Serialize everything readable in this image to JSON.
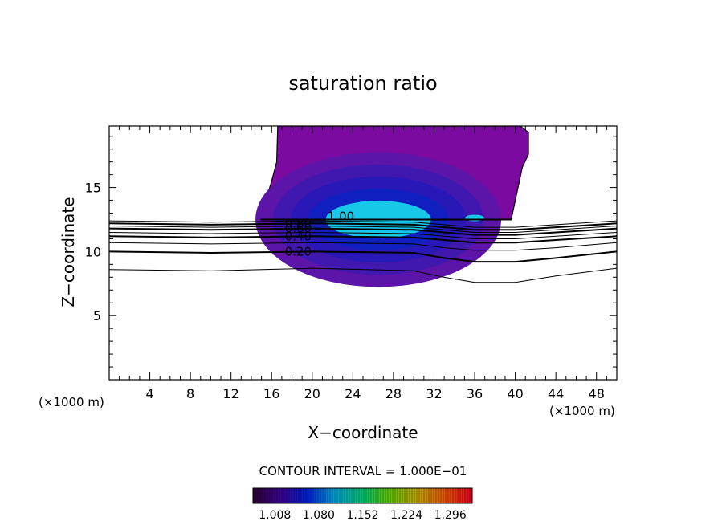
{
  "chart_data": {
    "type": "contour",
    "title": "saturation ratio",
    "xlabel": "X−coordinate",
    "ylabel": "Z−coordinate",
    "x_unit_left": "(×1000 m)",
    "x_unit_right": "(×1000 m)",
    "xlim": [
      0,
      50
    ],
    "ylim": [
      0,
      19.8
    ],
    "x_ticks": [
      4,
      8,
      12,
      16,
      20,
      24,
      28,
      32,
      36,
      40,
      44,
      48
    ],
    "y_ticks": [
      5,
      10,
      15
    ],
    "contour_interval_label": "CONTOUR INTERVAL = 1.000E−01",
    "contour_lines": [
      {
        "level": 0.1,
        "label": "",
        "points": [
          [
            0,
            8.6
          ],
          [
            10,
            8.5
          ],
          [
            20,
            8.7
          ],
          [
            30,
            8.5
          ],
          [
            33,
            8.0
          ],
          [
            36,
            7.6
          ],
          [
            40,
            7.6
          ],
          [
            44,
            8.1
          ],
          [
            50,
            8.7
          ]
        ]
      },
      {
        "level": 0.2,
        "label": "0.20",
        "points": [
          [
            0,
            10.0
          ],
          [
            10,
            9.9
          ],
          [
            20,
            10.0
          ],
          [
            30,
            9.9
          ],
          [
            33,
            9.5
          ],
          [
            36,
            9.2
          ],
          [
            40,
            9.2
          ],
          [
            44,
            9.5
          ],
          [
            50,
            10.0
          ]
        ]
      },
      {
        "level": 0.3,
        "label": "",
        "points": [
          [
            0,
            10.7
          ],
          [
            10,
            10.6
          ],
          [
            20,
            10.7
          ],
          [
            30,
            10.6
          ],
          [
            33,
            10.3
          ],
          [
            36,
            10.1
          ],
          [
            40,
            10.1
          ],
          [
            44,
            10.3
          ],
          [
            50,
            10.7
          ]
        ]
      },
      {
        "level": 0.4,
        "label": "0.40",
        "points": [
          [
            0,
            11.2
          ],
          [
            10,
            11.1
          ],
          [
            20,
            11.2
          ],
          [
            30,
            11.1
          ],
          [
            33,
            10.9
          ],
          [
            36,
            10.7
          ],
          [
            40,
            10.7
          ],
          [
            44,
            10.9
          ],
          [
            50,
            11.2
          ]
        ]
      },
      {
        "level": 0.5,
        "label": "",
        "points": [
          [
            0,
            11.5
          ],
          [
            10,
            11.4
          ],
          [
            20,
            11.5
          ],
          [
            30,
            11.4
          ],
          [
            33,
            11.2
          ],
          [
            36,
            11.0
          ],
          [
            40,
            11.0
          ],
          [
            44,
            11.2
          ],
          [
            50,
            11.5
          ]
        ]
      },
      {
        "level": 0.6,
        "label": "0.60",
        "points": [
          [
            0,
            11.8
          ],
          [
            10,
            11.7
          ],
          [
            20,
            11.8
          ],
          [
            30,
            11.7
          ],
          [
            33,
            11.5
          ],
          [
            36,
            11.3
          ],
          [
            40,
            11.3
          ],
          [
            44,
            11.5
          ],
          [
            50,
            11.8
          ]
        ]
      },
      {
        "level": 0.7,
        "label": "",
        "points": [
          [
            0,
            12.0
          ],
          [
            10,
            11.9
          ],
          [
            20,
            12.0
          ],
          [
            30,
            11.9
          ],
          [
            33,
            11.7
          ],
          [
            36,
            11.5
          ],
          [
            40,
            11.5
          ],
          [
            44,
            11.7
          ],
          [
            50,
            12.0
          ]
        ]
      },
      {
        "level": 0.8,
        "label": "0.80",
        "points": [
          [
            0,
            12.2
          ],
          [
            10,
            12.1
          ],
          [
            20,
            12.2
          ],
          [
            30,
            12.1
          ],
          [
            33,
            11.9
          ],
          [
            36,
            11.7
          ],
          [
            40,
            11.7
          ],
          [
            44,
            11.9
          ],
          [
            50,
            12.2
          ]
        ]
      },
      {
        "level": 0.9,
        "label": "",
        "points": [
          [
            0,
            12.4
          ],
          [
            10,
            12.3
          ],
          [
            20,
            12.4
          ],
          [
            30,
            12.3
          ],
          [
            33,
            12.1
          ],
          [
            36,
            11.9
          ],
          [
            40,
            11.9
          ],
          [
            44,
            12.1
          ],
          [
            50,
            12.4
          ]
        ]
      },
      {
        "level": 1.0,
        "label": "1.00",
        "points": [
          [
            14.9,
            12.5
          ],
          [
            39.6,
            12.5
          ]
        ]
      }
    ],
    "cloud_region": {
      "outline": [
        [
          14.9,
          12.5
        ],
        [
          15.5,
          14.2
        ],
        [
          16.0,
          15.5
        ],
        [
          16.5,
          17.0
        ],
        [
          16.6,
          19.8
        ],
        [
          40.5,
          19.8
        ],
        [
          41.3,
          19.3
        ],
        [
          41.3,
          17.6
        ],
        [
          40.7,
          16.6
        ],
        [
          39.6,
          12.5
        ]
      ],
      "fill_levels": [
        {
          "value": 1.008,
          "color": "#7a0aa0"
        },
        {
          "value": 1.02,
          "color": "#5d14a8"
        },
        {
          "value": 1.04,
          "color": "#4018b0"
        },
        {
          "value": 1.06,
          "color": "#2818b8"
        },
        {
          "value": 1.08,
          "color": "#1020c0"
        },
        {
          "value": 1.15,
          "color": "#18c8e8"
        }
      ]
    },
    "colorbar": {
      "ticks": [
        "1.008",
        "1.080",
        "1.152",
        "1.224",
        "1.296"
      ],
      "range": [
        0.972,
        1.332
      ],
      "colors": [
        "#2a0030",
        "#3a0090",
        "#0020d0",
        "#00a0d0",
        "#00c070",
        "#60c000",
        "#c0a000",
        "#e05000",
        "#e00020"
      ]
    }
  }
}
